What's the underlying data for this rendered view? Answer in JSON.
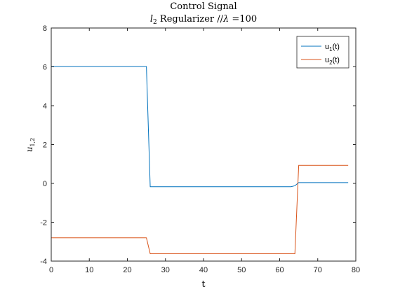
{
  "chart_data": {
    "type": "line",
    "title": "Control Signal",
    "subtitle_parts": {
      "reg_symbol": "l",
      "reg_sub": "2",
      "reg_text": " Regularizer //",
      "lambda_symbol": "λ",
      "lambda_value": " =100"
    },
    "xlabel": "t",
    "ylabel": {
      "symbol": "u",
      "sub": "1,2"
    },
    "xlim": [
      0,
      80
    ],
    "ylim": [
      -4,
      8
    ],
    "xticks": [
      0,
      10,
      20,
      30,
      40,
      50,
      60,
      70,
      80
    ],
    "yticks": [
      -4,
      -2,
      0,
      2,
      4,
      6,
      8
    ],
    "grid": false,
    "legend_position": "top-right",
    "series": [
      {
        "name": "u1(t)",
        "label_base": "u",
        "label_sub": "1",
        "label_tail": "(t)",
        "color": "#0072BD",
        "x": [
          0,
          25,
          26,
          63,
          64,
          65,
          78
        ],
        "y": [
          6.02,
          6.02,
          -0.17,
          -0.17,
          -0.12,
          0.04,
          0.04
        ]
      },
      {
        "name": "u2(t)",
        "label_base": "u",
        "label_sub": "2",
        "label_tail": "(t)",
        "color": "#D95319",
        "x": [
          0,
          25,
          26,
          64,
          65,
          78
        ],
        "y": [
          -2.8,
          -2.8,
          -3.62,
          -3.62,
          0.93,
          0.93
        ]
      }
    ]
  }
}
